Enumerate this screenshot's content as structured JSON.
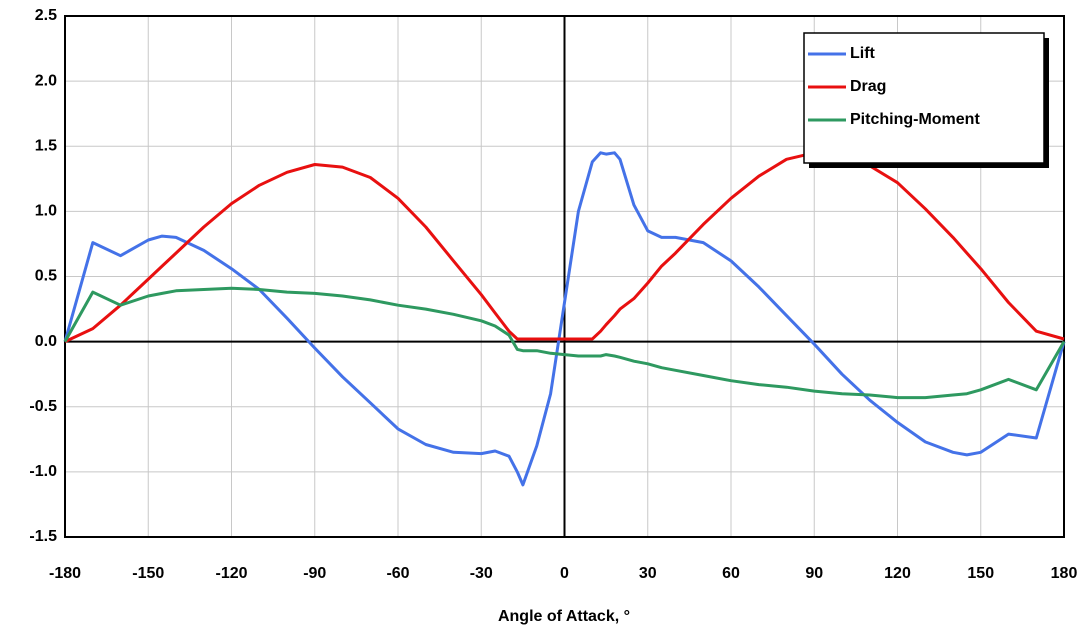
{
  "chart_data": {
    "type": "line",
    "x_label": "Angle of Attack, °",
    "x": [
      -180,
      -170,
      -160,
      -150,
      -145,
      -140,
      -130,
      -120,
      -110,
      -100,
      -90,
      -80,
      -70,
      -60,
      -50,
      -40,
      -30,
      -25,
      -20,
      -17,
      -15,
      -10,
      -5,
      0,
      5,
      10,
      13,
      15,
      18,
      20,
      25,
      30,
      35,
      40,
      50,
      60,
      70,
      80,
      90,
      100,
      110,
      120,
      130,
      140,
      145,
      150,
      160,
      170,
      180
    ],
    "series": [
      {
        "name": "Lift",
        "color": "#4472e8",
        "values": [
          0,
          0.76,
          0.66,
          0.78,
          0.81,
          0.8,
          0.7,
          0.56,
          0.4,
          0.18,
          -0.05,
          -0.27,
          -0.47,
          -0.67,
          -0.79,
          -0.85,
          -0.86,
          -0.84,
          -0.88,
          -1.0,
          -1.1,
          -0.8,
          -0.4,
          0.3,
          1.0,
          1.38,
          1.45,
          1.44,
          1.45,
          1.4,
          1.05,
          0.85,
          0.8,
          0.8,
          0.76,
          0.62,
          0.42,
          0.2,
          -0.02,
          -0.25,
          -0.45,
          -0.62,
          -0.77,
          -0.85,
          -0.87,
          -0.85,
          -0.71,
          -0.74,
          0
        ]
      },
      {
        "name": "Drag",
        "color": "#e81010",
        "values": [
          0,
          0.1,
          0.28,
          0.48,
          0.58,
          0.68,
          0.88,
          1.06,
          1.2,
          1.3,
          1.36,
          1.34,
          1.26,
          1.1,
          0.88,
          0.62,
          0.36,
          0.22,
          0.08,
          0.02,
          0.02,
          0.02,
          0.02,
          0.02,
          0.02,
          0.02,
          0.08,
          0.13,
          0.2,
          0.25,
          0.33,
          0.45,
          0.58,
          0.68,
          0.9,
          1.1,
          1.27,
          1.4,
          1.45,
          1.43,
          1.35,
          1.22,
          1.02,
          0.8,
          0.68,
          0.56,
          0.3,
          0.08,
          0.02
        ]
      },
      {
        "name": "Pitching-Moment",
        "color": "#2e9960",
        "values": [
          0,
          0.38,
          0.28,
          0.35,
          0.37,
          0.39,
          0.4,
          0.41,
          0.4,
          0.38,
          0.37,
          0.35,
          0.32,
          0.28,
          0.25,
          0.21,
          0.16,
          0.12,
          0.05,
          -0.06,
          -0.07,
          -0.07,
          -0.09,
          -0.1,
          -0.11,
          -0.11,
          -0.11,
          -0.1,
          -0.11,
          -0.12,
          -0.15,
          -0.17,
          -0.2,
          -0.22,
          -0.26,
          -0.3,
          -0.33,
          -0.35,
          -0.38,
          -0.4,
          -0.41,
          -0.43,
          -0.43,
          -0.41,
          -0.4,
          -0.37,
          -0.29,
          -0.37,
          0
        ]
      }
    ],
    "xlim": [
      -180,
      180
    ],
    "xticks": [
      -180,
      -150,
      -120,
      -90,
      -60,
      -30,
      0,
      30,
      60,
      90,
      120,
      150,
      180
    ],
    "ylim": [
      -1.5,
      2.5
    ],
    "yticks": [
      2.5,
      {
        "value": 2,
        "label": "2.0"
      },
      1.5,
      {
        "value": 1,
        "label": "1.0"
      },
      0.5,
      {
        "value": 0,
        "label": "0.0"
      },
      -0.5,
      {
        "value": -1,
        "label": "-1.0"
      },
      -1.5
    ],
    "grid": true,
    "legend": "upper right"
  }
}
